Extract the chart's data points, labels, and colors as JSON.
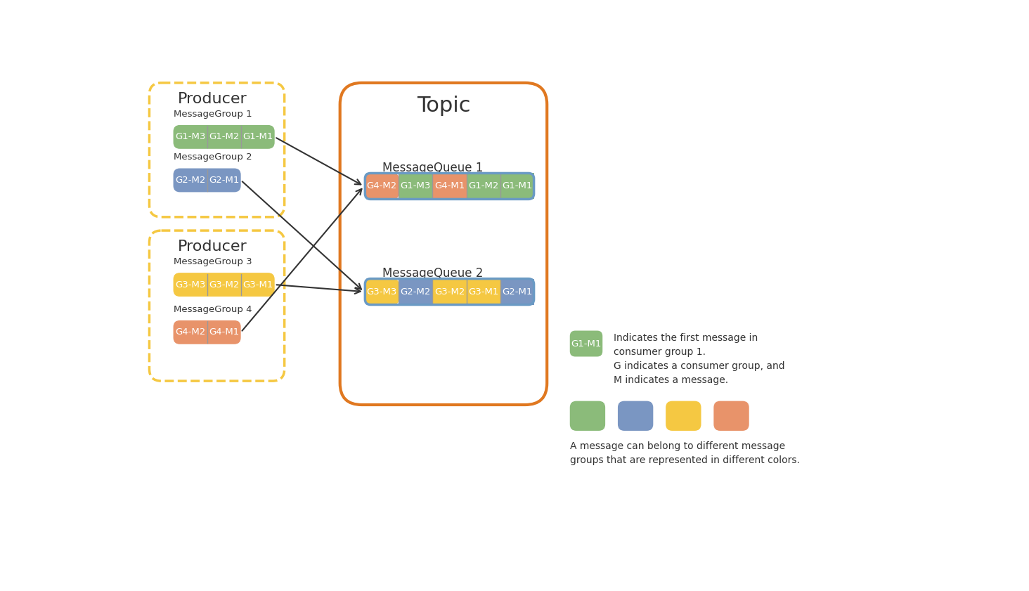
{
  "colors": {
    "green": "#8BBB7A",
    "blue": "#7A96C2",
    "yellow": "#F5C842",
    "orange": "#E8936A",
    "border_blue": "#6A9AC4",
    "topic_border": "#E07820",
    "producer_border": "#F5C842",
    "bg": "#ffffff",
    "text_dark": "#333333",
    "white": "#ffffff",
    "divider": "#999999"
  },
  "producer1": {
    "label": "Producer",
    "group1_label": "MessageGroup 1",
    "group1_items": [
      "G1-M3",
      "G1-M2",
      "G1-M1"
    ],
    "group1_color": "green",
    "group2_label": "MessageGroup 2",
    "group2_items": [
      "G2-M2",
      "G2-M1"
    ],
    "group2_color": "blue"
  },
  "producer2": {
    "label": "Producer",
    "group3_label": "MessageGroup 3",
    "group3_items": [
      "G3-M3",
      "G3-M2",
      "G3-M1"
    ],
    "group3_color": "yellow",
    "group4_label": "MessageGroup 4",
    "group4_items": [
      "G4-M2",
      "G4-M1"
    ],
    "group4_color": "orange"
  },
  "topic_label": "Topic",
  "mq1_label": "MessageQueue 1",
  "mq1_items": [
    "G4-M2",
    "G1-M3",
    "G4-M1",
    "G1-M2",
    "G1-M1"
  ],
  "mq1_colors": [
    "orange",
    "green",
    "orange",
    "green",
    "green"
  ],
  "mq2_label": "MessageQueue 2",
  "mq2_items": [
    "G3-M3",
    "G2-M2",
    "G3-M2",
    "G3-M1",
    "G2-M1"
  ],
  "mq2_colors": [
    "yellow",
    "blue",
    "yellow",
    "yellow",
    "blue"
  ],
  "legend_g1m1_label": "G1-M1",
  "legend_text1_lines": [
    "Indicates the first message in",
    "consumer group 1.",
    "G indicates a consumer group, and",
    "M indicates a message."
  ],
  "legend_text2_lines": [
    "A message can belong to different message",
    "groups that are represented in different colors."
  ],
  "legend_colors": [
    "green",
    "blue",
    "yellow",
    "orange"
  ]
}
